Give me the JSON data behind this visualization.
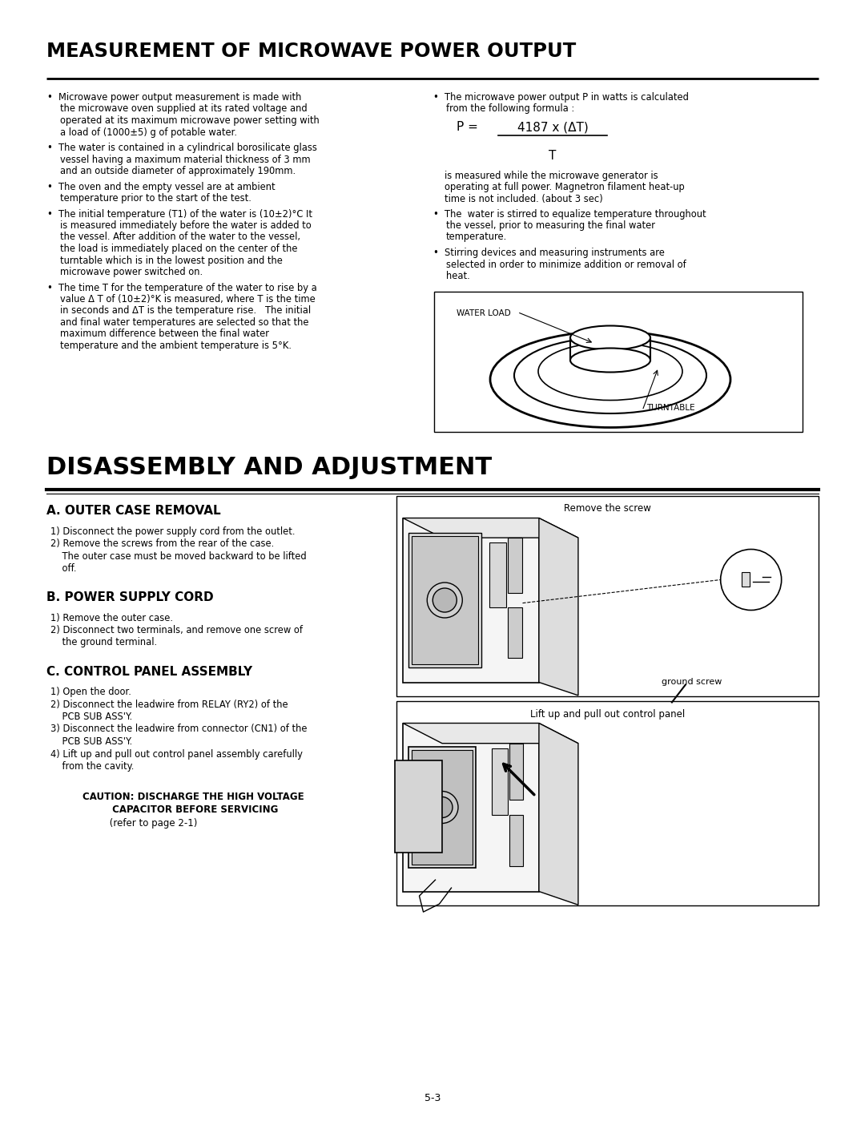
{
  "bg_color": "#ffffff",
  "title1": "MEASUREMENT OF MICROWAVE POWER OUTPUT",
  "title2": "DISASSEMBLY AND ADJUSTMENT",
  "section_a_title": "A. OUTER CASE REMOVAL",
  "section_b_title": "B. POWER SUPPLY CORD",
  "section_c_title": "C. CONTROL PANEL ASSEMBLY",
  "left_col_bullets": [
    "Microwave power output measurement is made with\nthe microwave oven supplied at its rated voltage and\noperated at its maximum microwave power setting with\na load of (1000±5) g of potable water.",
    "The water is contained in a cylindrical borosilicate glass\nvessel having a maximum material thickness of 3 mm\nand an outside diameter of approximately 190mm.",
    "The oven and the empty vessel are at ambient\ntemperature prior to the start of the test.",
    "The initial temperature (T1) of the water is (10±2)°C It\nis measured immediately before the water is added to\nthe vessel. After addition of the water to the vessel,\nthe load is immediately placed on the center of the\nturntable which is in the lowest position and the\nmicrowave power switched on.",
    "The time T for the temperature of the water to rise by a\nvalue Δ T of (10±2)°K is measured, where T is the time\nin seconds and ΔT is the temperature rise.   The initial\nand final water temperatures are selected so that the\nmaximum difference between the final water\ntemperature and the ambient temperature is 5°K."
  ],
  "right_col_bullet0": "The microwave power output P in watts is calculated\nfrom the following formula :",
  "right_col_bullet2": "The  water is stirred to equalize temperature throughout\nthe vessel, prior to measuring the final water\ntemperature.",
  "right_col_bullet3": "Stirring devices and measuring instruments are\nselected in order to minimize addition or removal of\nheat.",
  "formula_text1": "is measured while the microwave generator is\noperating at full power. Magnetron filament heat-up\ntime is not included. (about 3 sec)",
  "section_a_steps": [
    "1) Disconnect the power supply cord from the outlet.",
    "2) Remove the screws from the rear of the case.",
    "    The outer case must be moved backward to be lifted",
    "    off."
  ],
  "section_b_steps": [
    "1) Remove the outer case.",
    "2) Disconnect two terminals, and remove one screw of",
    "    the ground terminal."
  ],
  "section_c_steps": [
    "1) Open the door.",
    "2) Disconnect the leadwire from RELAY (RY2) of the",
    "    PCB SUB ASS'Y.",
    "3) Disconnect the leadwire from connector (CN1) of the",
    "    PCB SUB ASS'Y.",
    "4) Lift up and pull out control panel assembly carefully",
    "    from the cavity."
  ],
  "caution_line1": "CAUTION: DISCHARGE THE HIGH VOLTAGE",
  "caution_line2": "         CAPACITOR BEFORE SERVICING",
  "caution_line3": "         (refer to page 2-1)",
  "page_num": "5-3"
}
